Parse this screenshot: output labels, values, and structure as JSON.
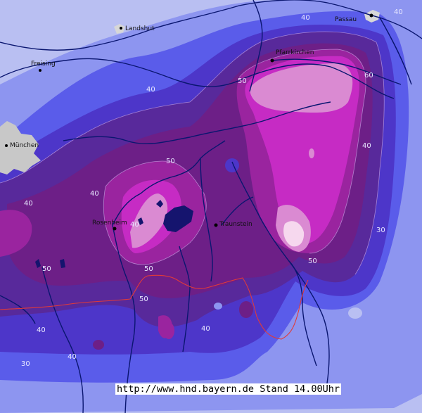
{
  "map": {
    "cities": [
      {
        "name": "Landshut"
      },
      {
        "name": "Freising"
      },
      {
        "name": "München"
      },
      {
        "name": "Pfarrkirchen"
      },
      {
        "name": "Rosenheim"
      },
      {
        "name": "Traunstein"
      },
      {
        "name": "Passau"
      }
    ],
    "contour_labels": [
      "40",
      "40",
      "40",
      "40",
      "40",
      "40",
      "50",
      "50",
      "50",
      "50",
      "50",
      "60",
      "40",
      "40",
      "50",
      "30",
      "30",
      "40",
      "40"
    ],
    "colors": {
      "level_20": "#b9bff2",
      "level_30": "#8d95f0",
      "level_40": "#5a5cea",
      "level_45": "#4d36c9",
      "level_50": "#58299b",
      "level_55": "#6d1f87",
      "level_60": "#9a249f",
      "level_70": "#c62bc4",
      "level_80": "#da8ad2",
      "level_90": "#f6d8ee",
      "rivers": "#0a1670",
      "border": "#e03a3a",
      "lakes": "#15146e"
    }
  },
  "stamp": {
    "text": "http://www.hnd.bayern.de Stand 14.00Uhr"
  }
}
